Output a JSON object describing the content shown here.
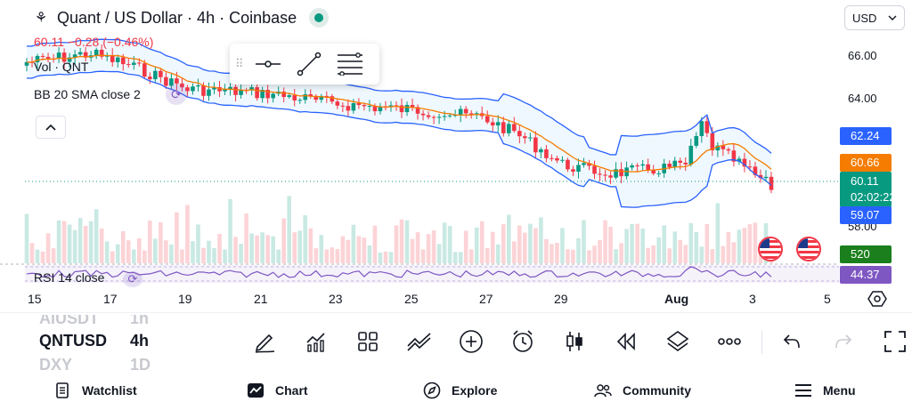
{
  "header": {
    "symbol_title": "Quant / US Dollar · 4h · Coinbase",
    "exchange_icon": "coinbase-spark-icon",
    "live_status_color": "#089981",
    "currency": "USD"
  },
  "legend": {
    "ohlc": "60.11  −0.28 (−0.46%)",
    "volume": "Vol · QNT",
    "bollinger": "BB 20 SMA close 2",
    "rsi": "RSI 14 close"
  },
  "price_axis": {
    "labels": [
      "66.00",
      "64.00",
      "58.00"
    ],
    "upper_band_tag": "62.24",
    "basis_tag": "60.66",
    "current_price": "60.11",
    "countdown": "02:02:22",
    "lower_band_tag": "59.07",
    "volume_tag": "520",
    "rsi_tag": "44.37"
  },
  "time_axis": {
    "labels": [
      "15",
      "17",
      "19",
      "21",
      "23",
      "25",
      "27",
      "29",
      "Aug",
      "3",
      "5"
    ]
  },
  "colors": {
    "up": "#089981",
    "down": "#f23645",
    "band": "#2962ff",
    "basis": "#f57c00",
    "rsi": "#7e57c2"
  },
  "toolbar": {
    "watchlist_peek": [
      "AIUSDT",
      "QNTUSD",
      "DXY"
    ],
    "interval_peek": [
      "1h",
      "4h",
      "1D"
    ],
    "icons": [
      "draw-icon",
      "indicators-icon",
      "layouts-icon",
      "compare-icon",
      "add-icon",
      "alert-icon",
      "chart-type-icon",
      "replay-icon",
      "layers-icon",
      "more-icon",
      "undo-icon",
      "redo-icon",
      "fullscreen-icon"
    ]
  },
  "bottom_nav": {
    "watchlist": "Watchlist",
    "chart": "Chart",
    "explore": "Explore",
    "community": "Community",
    "menu": "Menu"
  }
}
